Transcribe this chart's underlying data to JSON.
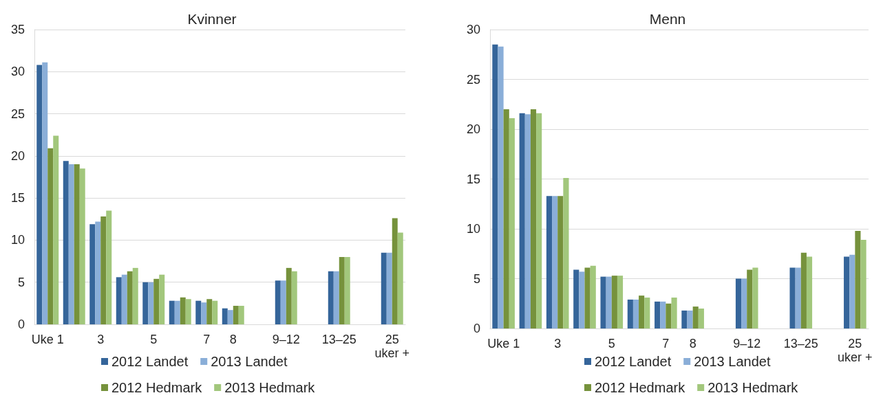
{
  "chart_data": [
    {
      "type": "bar",
      "title": "Kvinner",
      "categories": [
        "Uke 1",
        null,
        "3",
        null,
        "5",
        null,
        "7",
        "8",
        null,
        "9–12",
        null,
        "13–25",
        null,
        "25 uker +"
      ],
      "series": [
        {
          "name": "2012 Landet",
          "color": "#35659a",
          "values": [
            30.8,
            19.4,
            11.9,
            5.6,
            5,
            2.8,
            2.8,
            1.9,
            null,
            5.2,
            null,
            6.3,
            null,
            8.5
          ]
        },
        {
          "name": "2013 Landet",
          "color": "#8aaed8",
          "values": [
            31.1,
            19.0,
            12.2,
            5.9,
            5,
            2.8,
            2.6,
            1.7,
            null,
            5.2,
            null,
            6.3,
            null,
            8.5
          ]
        },
        {
          "name": "2012 Hedmark",
          "color": "#76923c",
          "values": [
            20.9,
            19.0,
            12.8,
            6.3,
            5.4,
            3.2,
            3.0,
            2.2,
            null,
            6.7,
            null,
            8.0,
            null,
            12.6
          ]
        },
        {
          "name": "2013 Hedmark",
          "color": "#a2c77c",
          "values": [
            22.4,
            18.5,
            13.5,
            6.7,
            5.9,
            3.0,
            2.8,
            2.2,
            null,
            6.3,
            null,
            8.0,
            null,
            10.9
          ]
        }
      ],
      "ylim": [
        0,
        35
      ],
      "yticks": [
        0,
        5,
        10,
        15,
        20,
        25,
        30,
        35
      ],
      "grid": "y",
      "legend": "bottom"
    },
    {
      "type": "bar",
      "title": "Menn",
      "categories": [
        "Uke 1",
        null,
        "3",
        null,
        "5",
        null,
        "7",
        "8",
        null,
        "9–12",
        null,
        "13–25",
        null,
        "25 uker +"
      ],
      "series": [
        {
          "name": "2012 Landet",
          "color": "#35659a",
          "values": [
            28.5,
            21.6,
            13.3,
            5.9,
            5.2,
            2.9,
            2.7,
            1.8,
            null,
            5.0,
            null,
            6.1,
            null,
            7.2
          ]
        },
        {
          "name": "2013 Landet",
          "color": "#8aaed8",
          "values": [
            28.3,
            21.5,
            13.3,
            5.7,
            5.2,
            2.9,
            2.7,
            1.8,
            null,
            5.0,
            null,
            6.1,
            null,
            7.4
          ]
        },
        {
          "name": "2012 Hedmark",
          "color": "#76923c",
          "values": [
            22.0,
            22.0,
            13.3,
            6.1,
            5.3,
            3.3,
            2.5,
            2.2,
            null,
            5.9,
            null,
            7.6,
            null,
            9.8
          ]
        },
        {
          "name": "2013 Hedmark",
          "color": "#a2c77c",
          "values": [
            21.1,
            21.6,
            15.1,
            6.3,
            5.3,
            3.1,
            3.1,
            2.0,
            null,
            6.1,
            null,
            7.2,
            null,
            8.9
          ]
        }
      ],
      "ylim": [
        0,
        30
      ],
      "yticks": [
        0,
        5,
        10,
        15,
        20,
        25,
        30
      ],
      "grid": "y",
      "legend": "bottom"
    }
  ]
}
